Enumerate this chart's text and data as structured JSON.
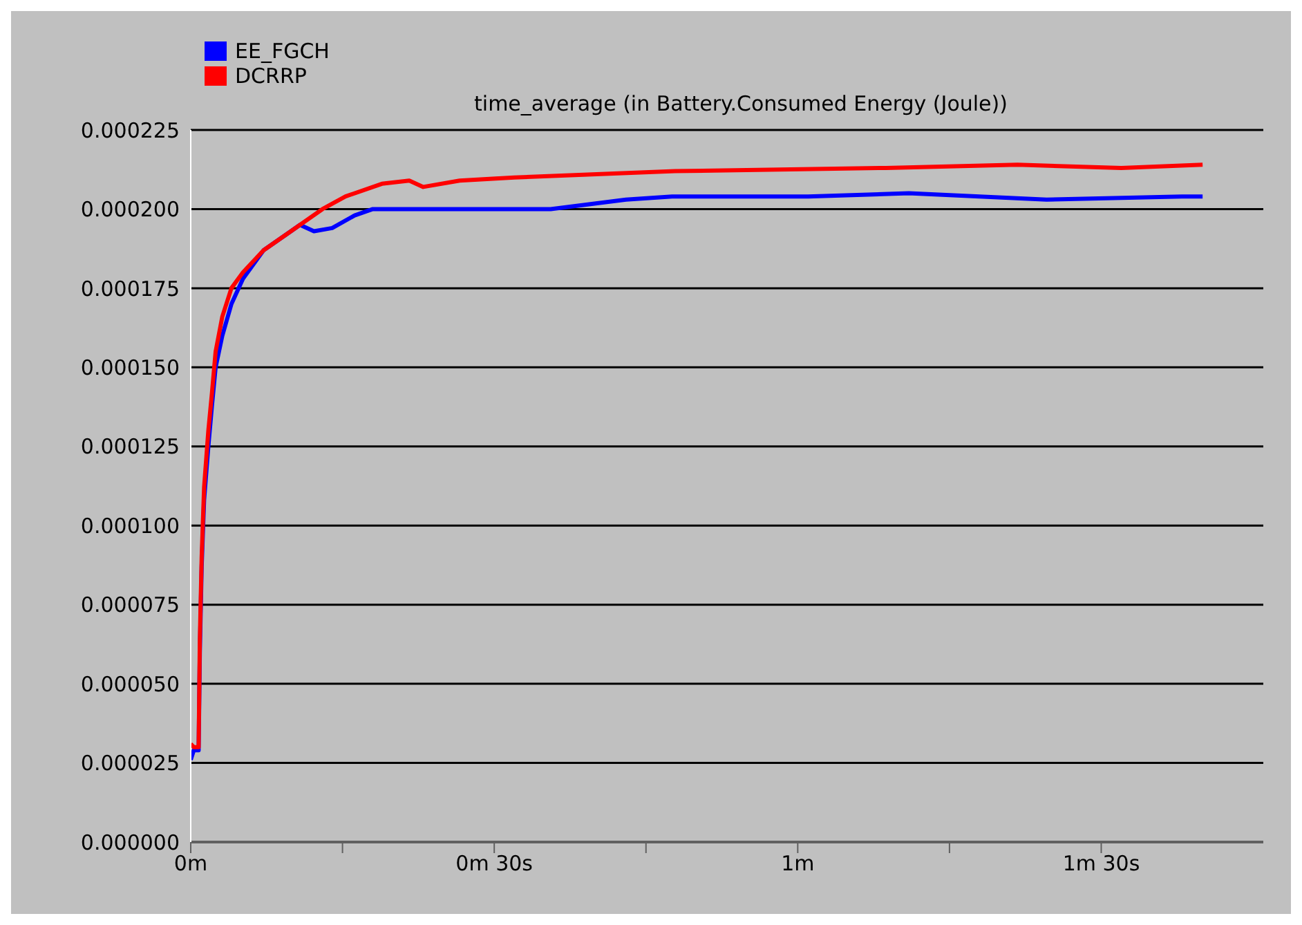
{
  "chart_data": {
    "type": "line",
    "title": "time_average (in Battery.Consumed Energy (Joule))",
    "xlim": [
      0,
      1.767
    ],
    "xticks": [
      {
        "value": 0,
        "label": "0m"
      },
      {
        "value": 0.25,
        "label": null
      },
      {
        "value": 0.5,
        "label": "0m 30s"
      },
      {
        "value": 0.75,
        "label": null
      },
      {
        "value": 1,
        "label": "1m"
      },
      {
        "value": 1.25,
        "label": null
      },
      {
        "value": 1.5,
        "label": "1m 30s"
      }
    ],
    "ylim": [
      0,
      0.000225
    ],
    "yticks": [
      {
        "value": 0,
        "label": "0.000000"
      },
      {
        "value": 2.5e-05,
        "label": "0.000025"
      },
      {
        "value": 5e-05,
        "label": "0.000050"
      },
      {
        "value": 7.5e-05,
        "label": "0.000075"
      },
      {
        "value": 0.0001,
        "label": "0.000100"
      },
      {
        "value": 0.000125,
        "label": "0.000125"
      },
      {
        "value": 0.00015,
        "label": "0.000150"
      },
      {
        "value": 0.000175,
        "label": "0.000175"
      },
      {
        "value": 0.0002,
        "label": "0.000200"
      },
      {
        "value": 0.000225,
        "label": "0.000225"
      }
    ],
    "grid": "y",
    "legend": "top left",
    "marker": "none",
    "line_style": "solid",
    "series": [
      {
        "name": "EE_FGCH",
        "color": "#0000ff",
        "x": [
          0,
          0.005,
          0.013,
          0.015,
          0.018,
          0.022,
          0.029,
          0.035,
          0.041,
          0.052,
          0.067,
          0.086,
          0.12,
          0.165,
          0.18,
          0.203,
          0.233,
          0.27,
          0.3,
          0.367,
          0.593,
          0.717,
          0.793,
          1.017,
          1.183,
          1.41,
          1.633,
          1.667
        ],
        "values": [
          2.6e-05,
          2.9e-05,
          2.9e-05,
          6e-05,
          8.7e-05,
          0.000108,
          0.000125,
          0.000138,
          0.00015,
          0.00016,
          0.00017,
          0.000178,
          0.000187,
          0.000193,
          0.000195,
          0.000193,
          0.000194,
          0.000198,
          0.0002,
          0.0002,
          0.0002,
          0.000203,
          0.000204,
          0.000204,
          0.000205,
          0.000203,
          0.000204,
          0.000204
        ]
      },
      {
        "name": "DCRRP",
        "color": "#ff0000",
        "x": [
          0,
          0.005,
          0.013,
          0.015,
          0.018,
          0.022,
          0.029,
          0.035,
          0.041,
          0.052,
          0.067,
          0.086,
          0.12,
          0.165,
          0.18,
          0.217,
          0.255,
          0.315,
          0.36,
          0.383,
          0.443,
          0.533,
          0.798,
          1.145,
          1.362,
          1.533,
          1.667
        ],
        "values": [
          3.1e-05,
          3e-05,
          3e-05,
          6.4e-05,
          9e-05,
          0.000112,
          0.00013,
          0.000142,
          0.000155,
          0.000166,
          0.000175,
          0.00018,
          0.000187,
          0.000193,
          0.000195,
          0.0002,
          0.000204,
          0.000208,
          0.000209,
          0.000207,
          0.000209,
          0.00021,
          0.000212,
          0.000213,
          0.000214,
          0.000213,
          0.000214
        ]
      }
    ]
  }
}
